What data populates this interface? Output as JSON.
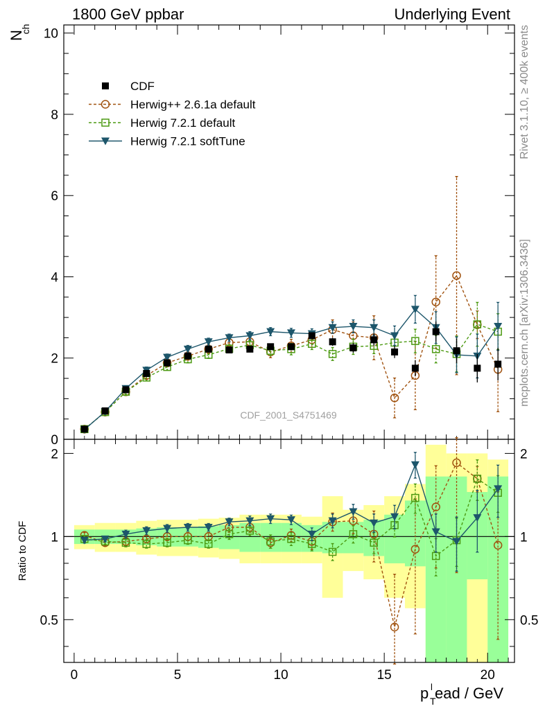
{
  "header": {
    "left": "1800 GeV ppbar",
    "right": "Underlying Event"
  },
  "side_labels": {
    "rivet": "Rivet 3.1.10, ≥ 400k events",
    "mcplots": "mcplots.cern.ch [arXiv:1306.3436]"
  },
  "watermark": "CDF_2001_S4751469",
  "colors": {
    "cdf": "#000000",
    "herwigpp": "#a0520f",
    "herwig721": "#4c9a12",
    "softtune": "#1d566b",
    "band_inner": "#99ff99",
    "band_outer": "#ffff99"
  },
  "chart_data": [
    {
      "type": "scatter",
      "title": "",
      "ylabel_main": "N",
      "ylabel_sub": "ch",
      "xlim": [
        -0.5,
        21.3
      ],
      "ylim": [
        0,
        10.2
      ],
      "yticks": [
        "0",
        "2",
        "4",
        "6",
        "8",
        "10"
      ],
      "x": [
        0.5,
        1.5,
        2.5,
        3.5,
        4.5,
        5.5,
        6.5,
        7.5,
        8.5,
        9.5,
        10.5,
        11.5,
        12.5,
        13.5,
        14.5,
        15.5,
        16.5,
        17.5,
        18.5,
        19.5,
        20.5
      ],
      "legend": [
        "CDF",
        "Herwig++ 2.6.1a default",
        "Herwig 7.2.1 default",
        "Herwig 7.2.1 softTune"
      ],
      "series": [
        {
          "name": "CDF",
          "values": [
            0.25,
            0.7,
            1.22,
            1.62,
            1.88,
            2.05,
            2.22,
            2.2,
            2.22,
            2.28,
            2.28,
            2.55,
            2.4,
            2.25,
            2.45,
            2.15,
            1.75,
            2.65,
            2.18,
            1.75,
            1.85
          ],
          "errors": [
            0.02,
            0.03,
            0.04,
            0.05,
            0.05,
            0.05,
            0.06,
            0.06,
            0.07,
            0.07,
            0.07,
            0.08,
            0.1,
            0.12,
            0.15,
            0.15,
            0.2,
            0.25,
            0.3,
            0.35,
            0.4
          ]
        },
        {
          "name": "Herwig++ 2.6.1a default",
          "values": [
            0.25,
            0.67,
            1.17,
            1.57,
            1.88,
            2.05,
            2.22,
            2.38,
            2.4,
            2.15,
            2.3,
            2.45,
            2.7,
            2.55,
            2.5,
            1.02,
            1.57,
            3.38,
            4.03,
            2.82,
            1.72
          ],
          "errors": [
            0.01,
            0.02,
            0.03,
            0.04,
            0.05,
            0.06,
            0.07,
            0.08,
            0.09,
            0.1,
            0.12,
            0.15,
            0.2,
            0.3,
            0.5,
            0.45,
            0.8,
            1.1,
            2.4,
            0.3,
            1.0
          ]
        },
        {
          "name": "Herwig 7.2.1 default",
          "values": [
            0.25,
            0.67,
            1.17,
            1.52,
            1.78,
            1.97,
            2.08,
            2.23,
            2.32,
            2.18,
            2.22,
            2.35,
            2.1,
            2.28,
            2.3,
            2.38,
            2.42,
            2.22,
            2.1,
            2.83,
            2.65
          ],
          "errors": [
            0.01,
            0.02,
            0.03,
            0.04,
            0.04,
            0.05,
            0.05,
            0.06,
            0.07,
            0.08,
            0.1,
            0.1,
            0.12,
            0.15,
            0.15,
            0.2,
            0.25,
            0.3,
            0.4,
            0.5,
            0.4
          ]
        },
        {
          "name": "Herwig 7.2.1 softTune",
          "values": [
            0.24,
            0.68,
            1.25,
            1.7,
            2.02,
            2.22,
            2.4,
            2.5,
            2.55,
            2.65,
            2.62,
            2.6,
            2.75,
            2.78,
            2.75,
            2.55,
            3.2,
            2.75,
            2.08,
            2.05,
            2.78
          ],
          "errors": [
            0.01,
            0.02,
            0.03,
            0.04,
            0.04,
            0.05,
            0.05,
            0.05,
            0.06,
            0.06,
            0.07,
            0.08,
            0.1,
            0.12,
            0.15,
            0.2,
            0.3,
            0.35,
            0.4,
            0.5,
            0.55
          ]
        }
      ]
    },
    {
      "type": "scatter",
      "title": "",
      "xlabel": "p_T^lead / GeV",
      "xlabel_main": "p",
      "xlabel_sub": "T",
      "xlabel_sup": "l",
      "xlabel_rest": "ead / GeV",
      "ylabel": "Ratio to CDF",
      "xlim": [
        -0.5,
        21.3
      ],
      "ylim": [
        0.35,
        2.25
      ],
      "xticks": [
        "0",
        "5",
        "10",
        "15",
        "20"
      ],
      "yticks": [
        "0.5",
        "1",
        "2"
      ],
      "reference_line": 1,
      "band_edges": [
        0,
        1,
        2,
        3,
        4,
        5,
        6,
        7,
        8,
        9,
        10,
        11,
        12,
        13,
        14,
        15,
        16,
        17,
        18,
        19,
        20,
        21
      ],
      "band_inner": [
        [
          0.94,
          1.06
        ],
        [
          0.94,
          1.06
        ],
        [
          0.94,
          1.06
        ],
        [
          0.93,
          1.07
        ],
        [
          0.92,
          1.08
        ],
        [
          0.92,
          1.08
        ],
        [
          0.91,
          1.09
        ],
        [
          0.9,
          1.1
        ],
        [
          0.88,
          1.12
        ],
        [
          0.88,
          1.12
        ],
        [
          0.88,
          1.12
        ],
        [
          0.88,
          1.1
        ],
        [
          0.87,
          1.13
        ],
        [
          0.87,
          1.13
        ],
        [
          0.85,
          1.15
        ],
        [
          0.8,
          1.2
        ],
        [
          0.78,
          1.35
        ],
        [
          0.3,
          1.65
        ],
        [
          0.3,
          1.65
        ],
        [
          0.7,
          1.45
        ],
        [
          0.3,
          1.65
        ]
      ],
      "band_outer": [
        [
          0.9,
          1.1
        ],
        [
          0.88,
          1.12
        ],
        [
          0.88,
          1.12
        ],
        [
          0.86,
          1.14
        ],
        [
          0.85,
          1.15
        ],
        [
          0.85,
          1.15
        ],
        [
          0.84,
          1.16
        ],
        [
          0.83,
          1.17
        ],
        [
          0.8,
          1.2
        ],
        [
          0.8,
          1.2
        ],
        [
          0.8,
          1.2
        ],
        [
          0.8,
          1.18
        ],
        [
          0.6,
          1.4
        ],
        [
          0.75,
          1.25
        ],
        [
          0.7,
          1.3
        ],
        [
          0.6,
          1.4
        ],
        [
          0.55,
          1.55
        ],
        [
          0.3,
          2.15
        ],
        [
          0.3,
          2.0
        ],
        [
          0.3,
          2.0
        ],
        [
          0.3,
          1.9
        ]
      ],
      "series": [
        {
          "name": "Herwig++ 2.6.1a default",
          "values": [
            1.01,
            0.95,
            0.96,
            0.98,
            1.0,
            1.0,
            1.0,
            1.08,
            1.08,
            0.95,
            1.01,
            0.96,
            1.13,
            1.14,
            1.02,
            0.47,
            0.9,
            1.28,
            1.85,
            1.62,
            0.93
          ],
          "errors": [
            0.01,
            0.01,
            0.02,
            0.02,
            0.02,
            0.02,
            0.02,
            0.03,
            0.03,
            0.03,
            0.04,
            0.05,
            0.07,
            0.1,
            0.2,
            0.25,
            0.45,
            0.5,
            1.1,
            0.15,
            0.5
          ]
        },
        {
          "name": "Herwig 7.2.1 default",
          "values": [
            0.98,
            0.96,
            0.95,
            0.94,
            0.95,
            0.97,
            0.94,
            1.02,
            1.05,
            0.96,
            0.98,
            0.94,
            0.88,
            1.02,
            0.95,
            1.1,
            1.38,
            0.85,
            0.97,
            1.62,
            1.44
          ],
          "errors": [
            0.01,
            0.01,
            0.02,
            0.02,
            0.02,
            0.02,
            0.02,
            0.03,
            0.03,
            0.04,
            0.04,
            0.04,
            0.05,
            0.06,
            0.07,
            0.09,
            0.15,
            0.12,
            0.18,
            0.25,
            0.2
          ]
        },
        {
          "name": "Herwig 7.2.1 softTune",
          "values": [
            0.97,
            0.98,
            1.02,
            1.05,
            1.07,
            1.08,
            1.08,
            1.13,
            1.14,
            1.16,
            1.15,
            1.02,
            1.14,
            1.23,
            1.12,
            1.18,
            1.82,
            1.04,
            0.96,
            1.17,
            1.49
          ],
          "errors": [
            0.01,
            0.01,
            0.02,
            0.02,
            0.02,
            0.02,
            0.02,
            0.02,
            0.03,
            0.03,
            0.03,
            0.04,
            0.05,
            0.06,
            0.07,
            0.1,
            0.17,
            0.15,
            0.2,
            0.28,
            0.3
          ]
        }
      ]
    }
  ]
}
